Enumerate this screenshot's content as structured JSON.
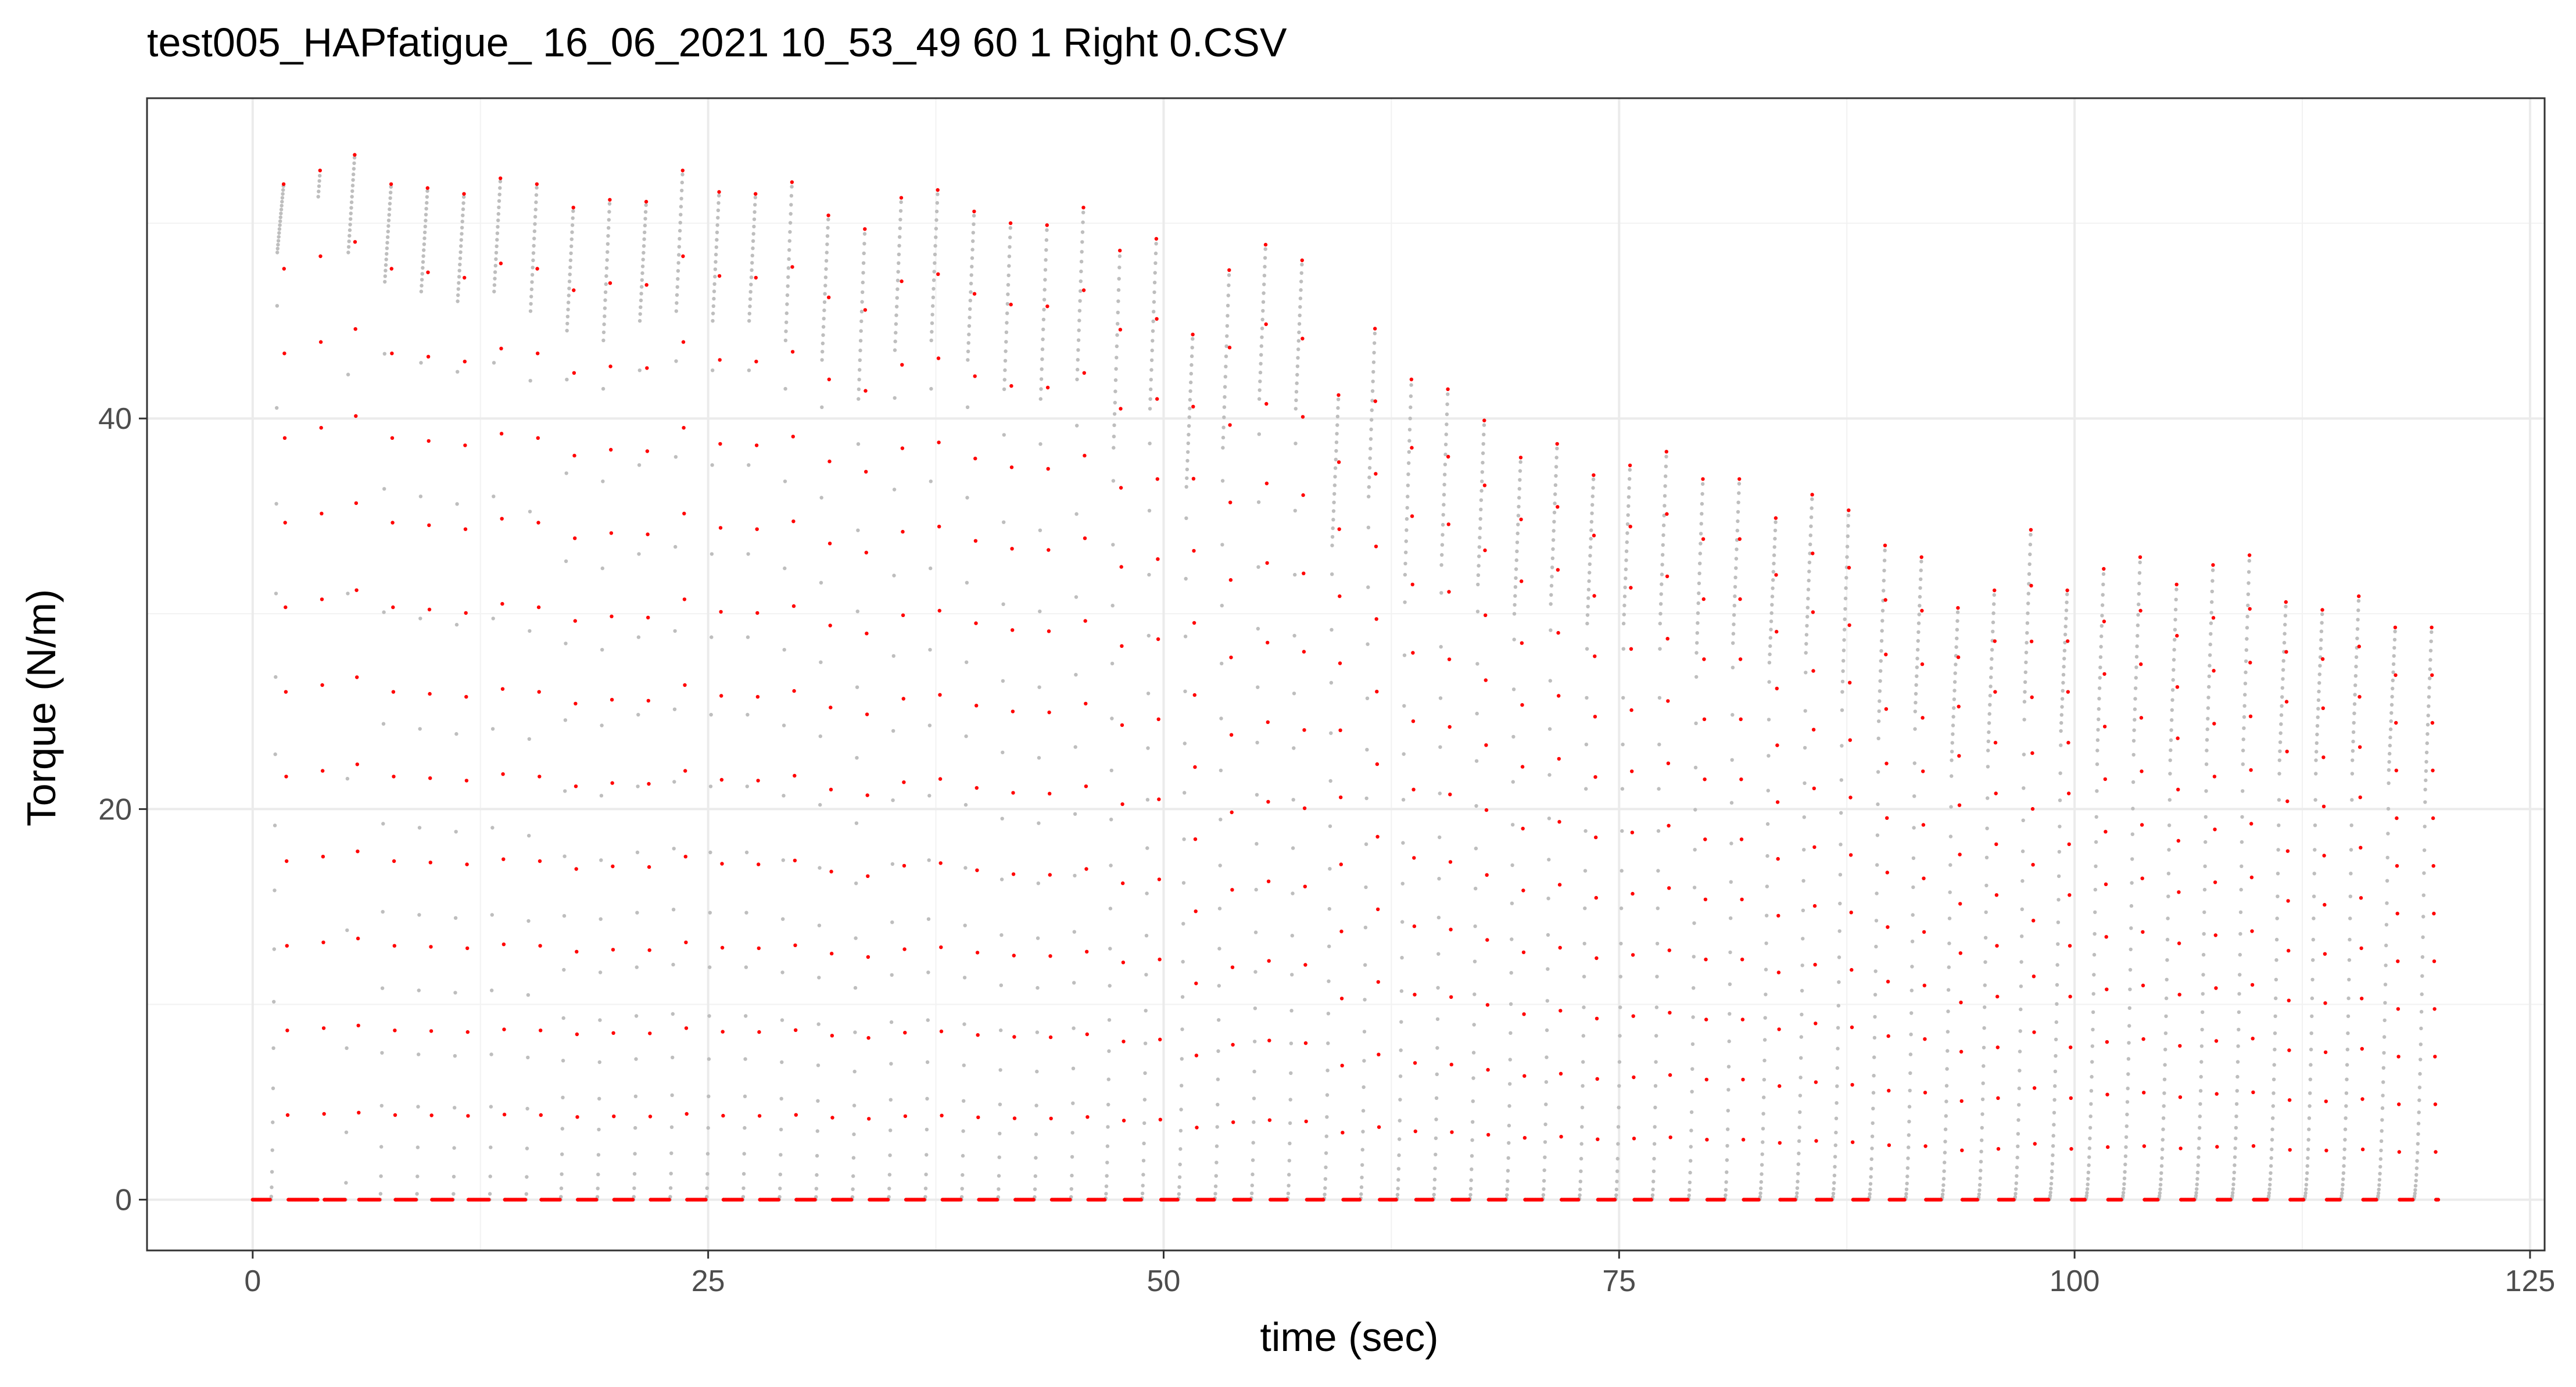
{
  "chart_data": {
    "type": "scatter",
    "title": "test005_HAPfatigue_ 16_06_2021 10_53_49 60 1 Right 0.CSV",
    "xlabel": "time (sec)",
    "ylabel": "Torque (N/m)",
    "xlim": [
      -5.8,
      125.8
    ],
    "ylim": [
      -2.6,
      56.4
    ],
    "xticks": [
      0,
      25,
      50,
      75,
      100,
      125
    ],
    "yticks": [
      0,
      20,
      40
    ],
    "grid": true,
    "legend": "none",
    "colors": {
      "highlight": "#ff0000",
      "signal": "#bebebe"
    },
    "series_names": [
      "signal",
      "highlight"
    ],
    "contractions": {
      "onset_time": [
        1.0,
        3.6,
        5.1,
        7.0,
        9.0,
        11.0,
        13.0,
        15.0,
        16.9,
        18.9,
        20.9,
        22.9,
        24.9,
        26.9,
        28.9,
        30.9,
        32.9,
        34.9,
        36.9,
        38.9,
        40.9,
        42.9,
        44.9,
        46.8,
        48.8,
        50.8,
        52.8,
        54.8,
        56.8,
        58.8,
        60.8,
        62.8,
        64.8,
        66.8,
        68.8,
        70.8,
        72.8,
        74.8,
        76.8,
        78.8,
        80.8,
        82.7,
        84.7,
        86.7,
        88.7,
        90.7,
        92.7,
        94.7,
        96.7,
        98.6,
        100.6,
        102.6,
        104.6,
        106.6,
        108.6,
        110.6,
        112.6,
        114.6,
        116.6,
        118.6
      ],
      "peak_time": [
        1.7,
        3.7,
        5.6,
        7.6,
        9.6,
        11.6,
        13.6,
        15.6,
        17.6,
        19.6,
        21.6,
        23.6,
        25.6,
        27.6,
        29.6,
        31.6,
        33.6,
        35.6,
        37.6,
        39.6,
        41.6,
        43.6,
        45.6,
        47.6,
        49.6,
        51.6,
        53.6,
        55.6,
        57.6,
        59.6,
        61.6,
        63.6,
        65.6,
        67.6,
        69.6,
        71.6,
        73.6,
        75.6,
        77.6,
        79.6,
        81.6,
        83.6,
        85.6,
        87.6,
        89.6,
        91.6,
        93.6,
        95.6,
        97.6,
        99.6,
        101.6,
        103.6,
        105.6,
        107.6,
        109.6,
        111.6,
        113.6,
        115.6,
        117.6,
        119.6
      ],
      "start_torque": [
        48.5,
        48.0,
        48.5,
        47.0,
        46.5,
        46.0,
        46.5,
        45.5,
        44.5,
        44.0,
        45.0,
        45.5,
        45.0,
        45.0,
        44.0,
        43.0,
        41.0,
        43.5,
        44.0,
        43.0,
        41.5,
        41.0,
        42.0,
        38.5,
        40.5,
        36.5,
        38.5,
        41.0,
        40.5,
        33.5,
        36.0,
        32.0,
        32.5,
        31.5,
        30.0,
        30.5,
        29.5,
        29.5,
        29.5,
        28.0,
        28.5,
        27.5,
        28.0,
        26.0,
        24.5,
        25.0,
        22.5,
        23.0,
        25.5,
        24.0,
        23.0,
        23.5,
        22.5,
        23.0,
        23.0,
        22.5,
        22.5,
        22.5,
        22.0,
        21.0
      ],
      "peak_torque": [
        52.0,
        52.7,
        53.5,
        52.0,
        51.8,
        51.5,
        52.3,
        52.0,
        50.8,
        51.2,
        51.1,
        52.7,
        51.6,
        51.5,
        52.1,
        50.4,
        49.7,
        51.3,
        51.7,
        50.6,
        50.0,
        49.9,
        50.8,
        48.6,
        49.2,
        44.3,
        47.6,
        48.9,
        48.1,
        41.2,
        44.6,
        42.0,
        41.5,
        39.9,
        38.0,
        38.7,
        37.1,
        37.6,
        38.3,
        36.9,
        36.9,
        34.9,
        36.1,
        35.3,
        33.5,
        32.9,
        30.3,
        31.2,
        34.3,
        31.2,
        32.3,
        32.9,
        31.5,
        32.5,
        33.0,
        30.6,
        30.2,
        30.9,
        29.3,
        29.3
      ]
    }
  }
}
